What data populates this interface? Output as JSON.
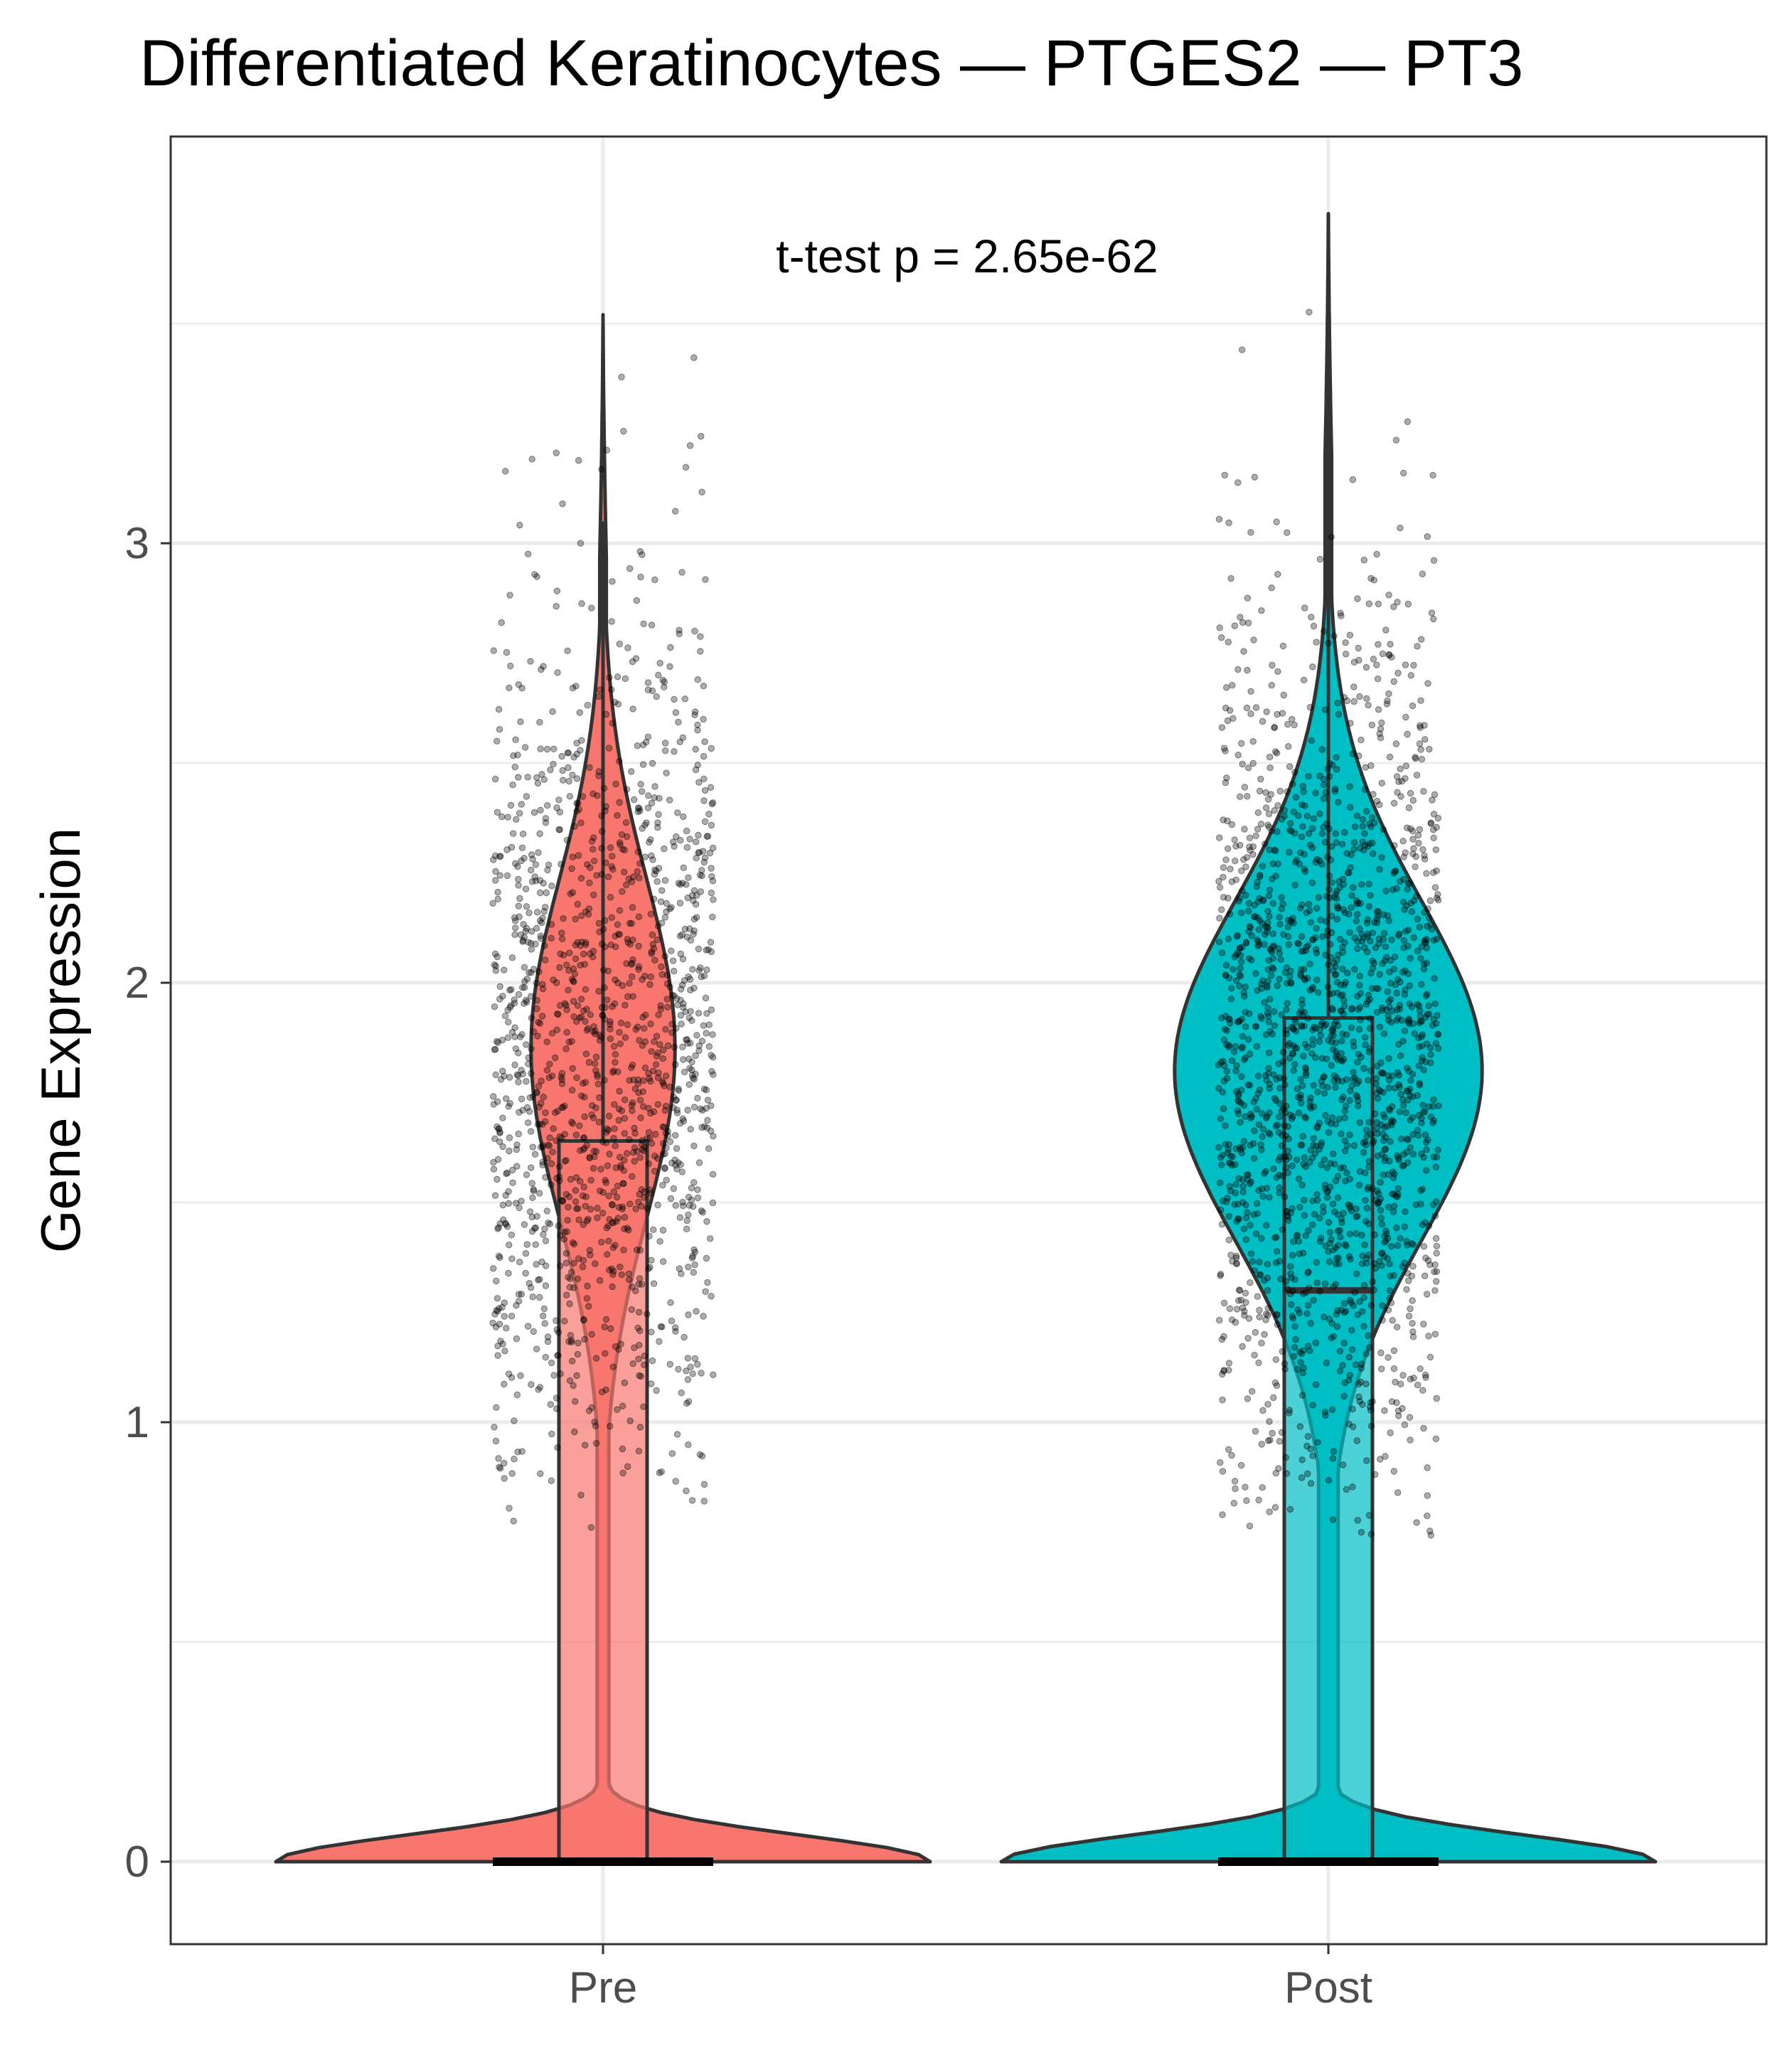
{
  "chart_data": {
    "type": "violin",
    "title": "Differentiated Keratinocytes — PTGES2 — PT3",
    "xlabel": "",
    "ylabel": "Gene Expression",
    "ylim": [
      -0.18,
      3.92
    ],
    "yticks": [
      0,
      1,
      2,
      3
    ],
    "categories": [
      "Pre",
      "Post"
    ],
    "grid": true,
    "legend": "none",
    "annotation": "t-test p = 2.65e-62",
    "series": [
      {
        "category": "Pre",
        "color": "#F8766D",
        "box": {
          "min": 0,
          "q1": 0,
          "median": 0,
          "q3": 1.64,
          "max": 3.05
        },
        "max_value": 3.52,
        "nonzero_center": 1.85,
        "nonzero_sd": 0.52,
        "nonzero_min": 0.76,
        "n_points_shown": 1400
      },
      {
        "category": "Post",
        "color": "#00BFC4",
        "box": {
          "min": 0,
          "q1": 0,
          "median": 1.3,
          "q3": 1.92,
          "max": 3.6
        },
        "max_value": 3.75,
        "nonzero_center": 1.8,
        "nonzero_sd": 0.52,
        "nonzero_min": 0.74,
        "n_points_shown": 1800
      }
    ]
  }
}
